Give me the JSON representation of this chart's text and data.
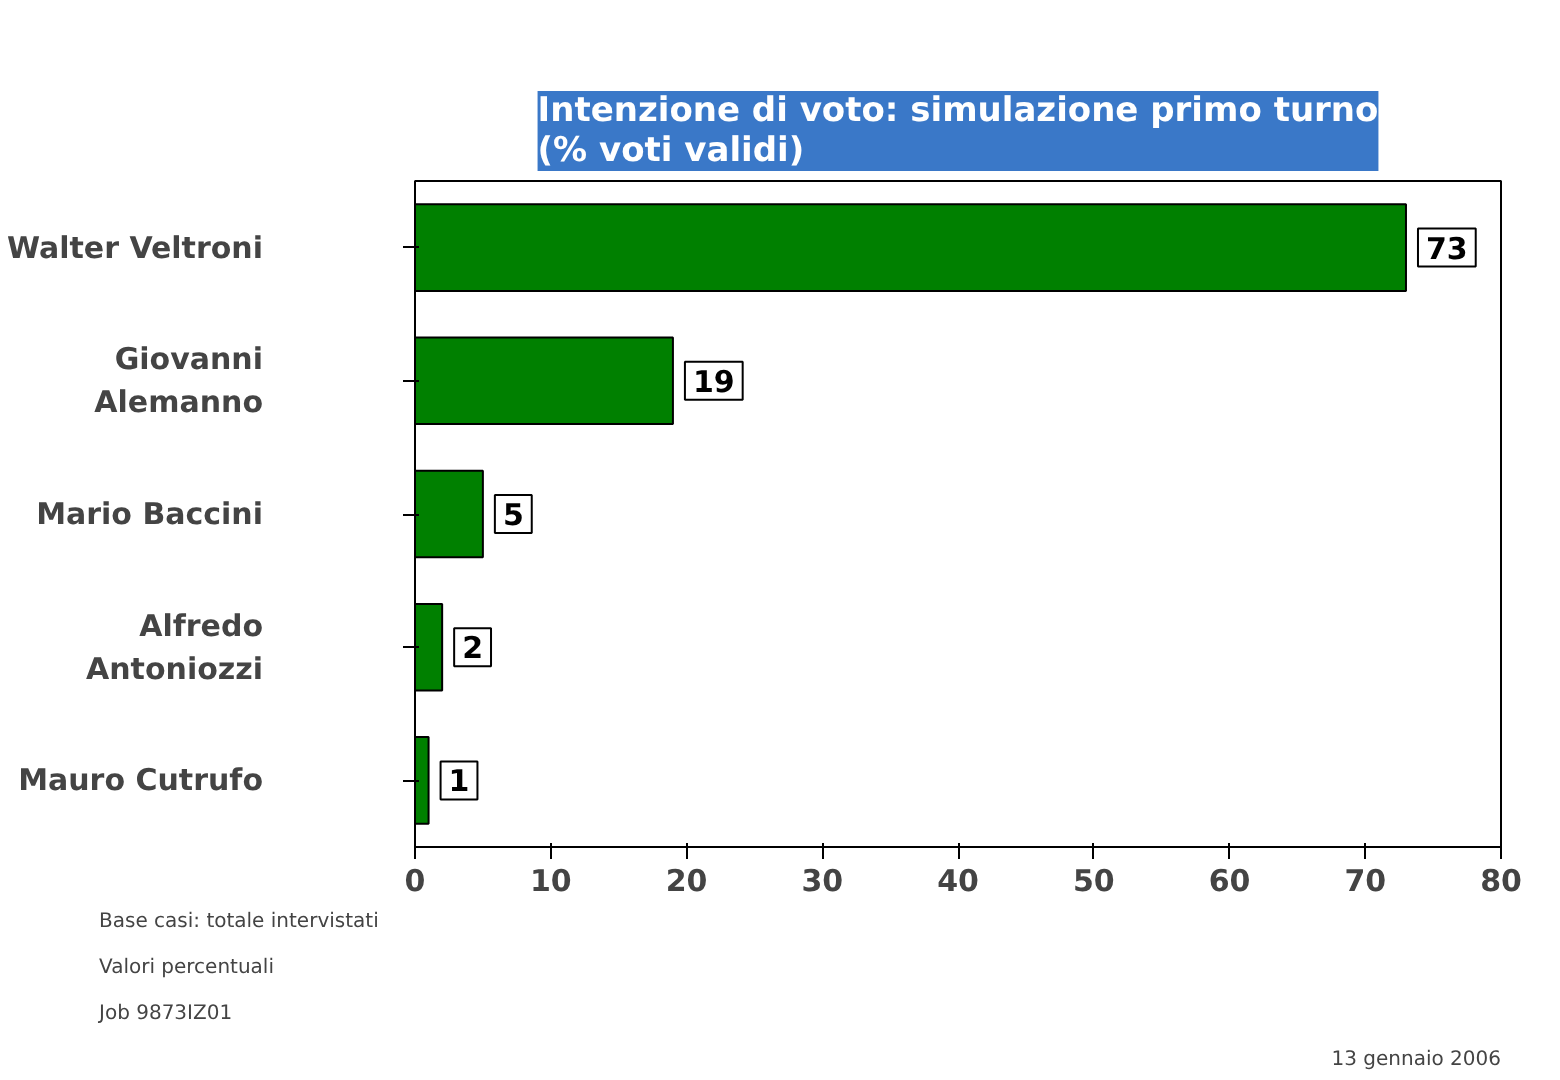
{
  "chart_data": {
    "type": "bar",
    "orientation": "horizontal",
    "title": "Intenzione di voto: simulazione primo turno\n(% voti validi)",
    "categories": [
      "Walter Veltroni",
      "Giovanni\nAlemanno",
      "Mario Baccini",
      "Alfredo\nAntoniozzi",
      "Mauro Cutrufo"
    ],
    "values": [
      73,
      19,
      5,
      2,
      1
    ],
    "color": "#008000",
    "data_labels": true,
    "xlim": [
      0,
      80
    ],
    "xticks": [
      0,
      10,
      20,
      30,
      40,
      50,
      60,
      70,
      80
    ],
    "grid": false,
    "annotations": [
      "Base casi: totale intervistati",
      "Valori percentuali",
      "Job 9873IZ01",
      "13 gennaio 2006"
    ]
  }
}
